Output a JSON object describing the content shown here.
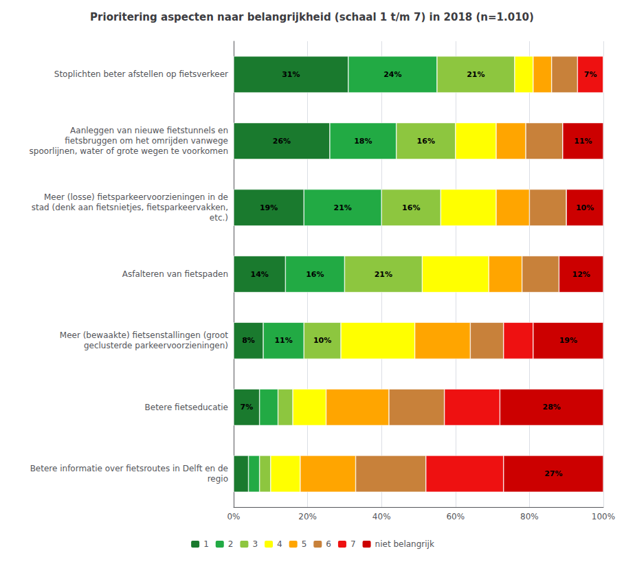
{
  "chart_data": {
    "type": "bar",
    "orientation": "horizontal",
    "stacked": true,
    "title": "Prioritering aspecten naar belangrijkheid (schaal 1 t/m 7) in 2018 (n=1.010)",
    "categories": [
      "Stoplichten beter afstellen op fietsverkeer",
      "Aanleggen van nieuwe fietstunnels en\nfietsbruggen om het omrijden vanwege\nspoorlijnen, water of grote wegen te voorkomen",
      "Meer (losse) fietsparkeervoorzieningen in de\nstad (denk aan fietsnietjes, fietsparkeervakken,\netc.)",
      "Asfalteren van fietspaden",
      "Meer (bewaakte) fietsenstallingen (groot\ngeclusterde parkeervoorzieningen)",
      "Betere fietseducatie",
      "Betere informatie over fietsroutes in Delft en de\nregio"
    ],
    "series": [
      {
        "name": "1",
        "color": "#1a7a2e",
        "values": [
          31,
          26,
          19,
          14,
          8,
          7,
          4
        ],
        "value_labels": [
          "31%",
          "26%",
          "19%",
          "14%",
          "8%",
          "7%",
          null
        ]
      },
      {
        "name": "2",
        "color": "#22aa44",
        "values": [
          24,
          18,
          21,
          16,
          11,
          5,
          3
        ],
        "value_labels": [
          "24%",
          "18%",
          "21%",
          "16%",
          "11%",
          null,
          null
        ]
      },
      {
        "name": "3",
        "color": "#8dc63f",
        "values": [
          21,
          16,
          16,
          21,
          10,
          4,
          3
        ],
        "value_labels": [
          "21%",
          "16%",
          "16%",
          "21%",
          "10%",
          null,
          null
        ]
      },
      {
        "name": "4",
        "color": "#ffff00",
        "values": [
          5,
          11,
          15,
          18,
          20,
          9,
          8
        ]
      },
      {
        "name": "5",
        "color": "#ffa500",
        "values": [
          5,
          8,
          9,
          9,
          15,
          17,
          15
        ]
      },
      {
        "name": "6",
        "color": "#c8813a",
        "values": [
          7,
          10,
          10,
          10,
          9,
          15,
          19
        ]
      },
      {
        "name": "7",
        "color": "#ee1111",
        "values": [
          7,
          0,
          0,
          0,
          8,
          15,
          21
        ],
        "value_labels": [
          "7%",
          null,
          null,
          null,
          null,
          null,
          null
        ]
      },
      {
        "name": "niet belangrijk",
        "color": "#cc0000",
        "values": [
          0,
          11,
          10,
          12,
          19,
          28,
          27
        ],
        "value_labels": [
          null,
          "11%",
          "10%",
          "12%",
          "19%",
          "28%",
          "27%"
        ]
      }
    ],
    "xlim": [
      0,
      100
    ],
    "xticks": [
      {
        "value": 0,
        "label": "0%"
      },
      {
        "value": 20,
        "label": "20%"
      },
      {
        "value": 40,
        "label": "40%"
      },
      {
        "value": 60,
        "label": "60%"
      },
      {
        "value": 80,
        "label": "80%"
      },
      {
        "value": 100,
        "label": "100%"
      }
    ],
    "grid": true,
    "legend": "bottom"
  }
}
